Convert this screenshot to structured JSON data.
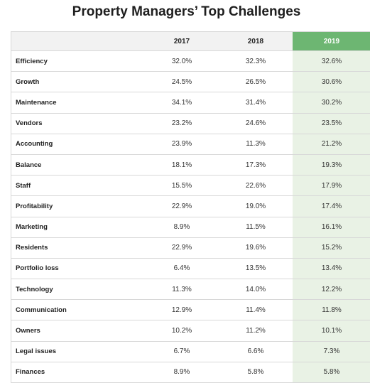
{
  "chart_data": {
    "type": "table",
    "title": "Property Managers’ Top Challenges",
    "columns": [
      "",
      "2017",
      "2018",
      "2019"
    ],
    "rows": [
      {
        "label": "Efficiency",
        "values": [
          "32.0%",
          "32.3%",
          "32.6%"
        ]
      },
      {
        "label": "Growth",
        "values": [
          "24.5%",
          "26.5%",
          "30.6%"
        ]
      },
      {
        "label": "Maintenance",
        "values": [
          "34.1%",
          "31.4%",
          "30.2%"
        ]
      },
      {
        "label": "Vendors",
        "values": [
          "23.2%",
          "24.6%",
          "23.5%"
        ]
      },
      {
        "label": "Accounting",
        "values": [
          "23.9%",
          "11.3%",
          "21.2%"
        ]
      },
      {
        "label": "Balance",
        "values": [
          "18.1%",
          "17.3%",
          "19.3%"
        ]
      },
      {
        "label": "Staff",
        "values": [
          "15.5%",
          "22.6%",
          "17.9%"
        ]
      },
      {
        "label": "Profitability",
        "values": [
          "22.9%",
          "19.0%",
          "17.4%"
        ]
      },
      {
        "label": "Marketing",
        "values": [
          "8.9%",
          "11.5%",
          "16.1%"
        ]
      },
      {
        "label": "Residents",
        "values": [
          "22.9%",
          "19.6%",
          "15.2%"
        ]
      },
      {
        "label": "Portfolio loss",
        "values": [
          "6.4%",
          "13.5%",
          "13.4%"
        ]
      },
      {
        "label": "Technology",
        "values": [
          "11.3%",
          "14.0%",
          "12.2%"
        ]
      },
      {
        "label": "Communication",
        "values": [
          "12.9%",
          "11.4%",
          "11.8%"
        ]
      },
      {
        "label": "Owners",
        "values": [
          "10.2%",
          "11.2%",
          "10.1%"
        ]
      },
      {
        "label": "Legal issues",
        "values": [
          "6.7%",
          "6.6%",
          "7.3%"
        ]
      },
      {
        "label": "Finances",
        "values": [
          "8.9%",
          "5.8%",
          "5.8%"
        ]
      }
    ],
    "highlight_column": "2019",
    "highlight_color": "#6db672",
    "highlight_tint": "#e9f2e5"
  }
}
